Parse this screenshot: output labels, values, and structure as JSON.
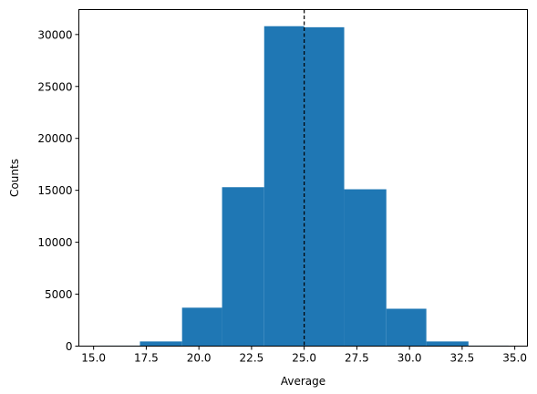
{
  "chart_data": {
    "type": "bar",
    "title": "",
    "xlabel": "Average",
    "ylabel": "Counts",
    "bins": [
      {
        "start": 15.3,
        "end": 17.2,
        "count": 50
      },
      {
        "start": 17.2,
        "end": 19.2,
        "count": 450
      },
      {
        "start": 19.2,
        "end": 21.1,
        "count": 3700
      },
      {
        "start": 21.1,
        "end": 23.1,
        "count": 15300
      },
      {
        "start": 23.1,
        "end": 25.0,
        "count": 30800
      },
      {
        "start": 25.0,
        "end": 26.9,
        "count": 30700
      },
      {
        "start": 26.9,
        "end": 28.9,
        "count": 15100
      },
      {
        "start": 28.9,
        "end": 30.8,
        "count": 3600
      },
      {
        "start": 30.8,
        "end": 32.8,
        "count": 450
      },
      {
        "start": 32.8,
        "end": 34.7,
        "count": 50
      }
    ],
    "xlim": [
      14.3,
      35.6
    ],
    "ylim": [
      0,
      32400
    ],
    "x_ticks": [
      15.0,
      17.5,
      20.0,
      22.5,
      25.0,
      27.5,
      30.0,
      32.5,
      35.0
    ],
    "x_tick_labels": [
      "15.0",
      "17.5",
      "20.0",
      "22.5",
      "25.0",
      "27.5",
      "30.0",
      "32.5",
      "35.0"
    ],
    "y_ticks": [
      0,
      5000,
      10000,
      15000,
      20000,
      25000,
      30000
    ],
    "y_tick_labels": [
      "0",
      "5000",
      "10000",
      "15000",
      "20000",
      "25000",
      "30000"
    ],
    "reference_line": {
      "x": 25.0,
      "style": "dashed"
    },
    "grid": false,
    "legend": "none",
    "bar_color": "#1f77b4",
    "line_color": "#000000"
  }
}
